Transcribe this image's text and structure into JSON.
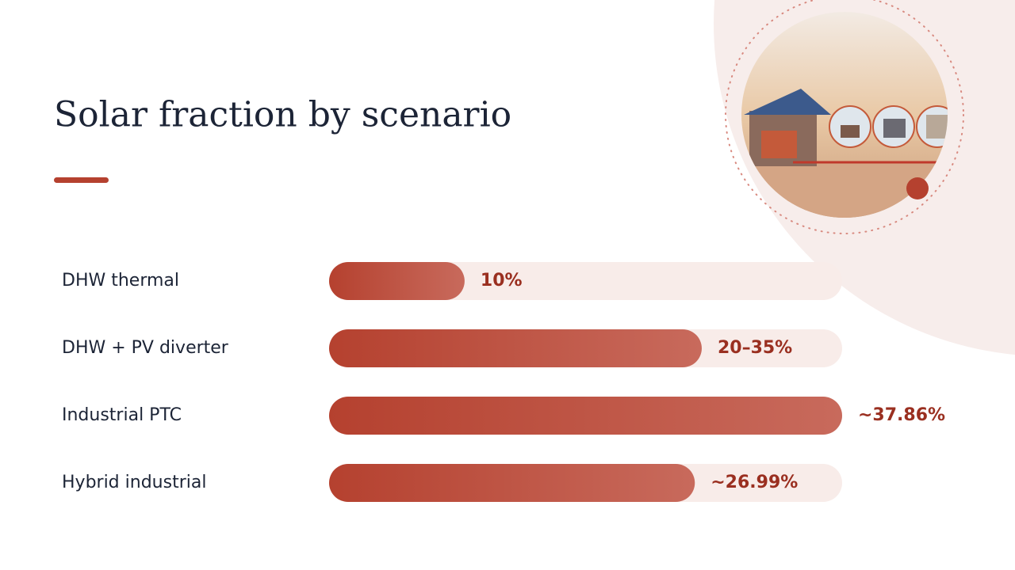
{
  "chart_data": {
    "type": "bar",
    "orientation": "horizontal",
    "title": "Solar fraction by scenario",
    "categories": [
      "DHW thermal",
      "DHW + PV diverter",
      "Industrial PTC",
      "Hybrid industrial"
    ],
    "series": [
      {
        "values": [
          10,
          null,
          37.86,
          26.99
        ],
        "ranges": [
          null,
          [
            20,
            35
          ],
          null,
          null
        ],
        "value_labels": [
          "10%",
          "20–35%",
          "~37.86%",
          "~26.99%"
        ],
        "color": "#b5412f"
      }
    ],
    "xlim": [
      0,
      37.86
    ],
    "track_color": "#f8ece9"
  }
}
